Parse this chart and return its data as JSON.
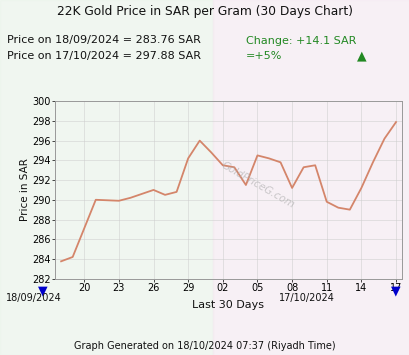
{
  "title": "22K Gold Price in SAR per Gram (30 Days Chart)",
  "line1_label": "Price on 18/09/2024 = 283.76 SAR",
  "line2_label": "Price on 17/10/2024 = 297.88 SAR",
  "change_label": "Change: +14.1 SAR",
  "pct_label": "=+5%",
  "footer": "Graph Generated on 18/10/2024 07:37 (Riyadh Time)",
  "xlabel": "Last 30 Days",
  "ylabel": "Price in SAR",
  "xleft_label": "18/09/2024",
  "xright_label": "17/10/2024",
  "watermark": "GoldPriceG.com",
  "ylim": [
    282,
    300
  ],
  "yticks": [
    282,
    284,
    286,
    288,
    290,
    292,
    294,
    296,
    298,
    300
  ],
  "xtick_labels": [
    "20",
    "23",
    "26",
    "29",
    "02",
    "05",
    "08",
    "11",
    "14",
    "17"
  ],
  "bg_color": "#f8f0f5",
  "bg_left_color": "#e8f2e8",
  "bg_right_color": "#f8eaf2",
  "line_color": "#d4856a",
  "title_color": "#111111",
  "info_color": "#111111",
  "change_color": "#228822",
  "arrow_color": "#0000cc",
  "grid_color": "#cccccc",
  "x_data": [
    0,
    1,
    3,
    5,
    6,
    8,
    9,
    10,
    11,
    12,
    13,
    14,
    15,
    16,
    17,
    18,
    19,
    20,
    21,
    22,
    23,
    24,
    25,
    26,
    27,
    28,
    29
  ],
  "y_data": [
    283.76,
    284.2,
    290.0,
    289.9,
    290.2,
    291.0,
    290.5,
    290.8,
    294.2,
    296.0,
    294.8,
    293.5,
    293.3,
    291.5,
    294.5,
    294.2,
    293.8,
    291.2,
    293.3,
    293.5,
    289.8,
    289.2,
    289.0,
    291.2,
    293.8,
    296.2,
    297.88
  ]
}
